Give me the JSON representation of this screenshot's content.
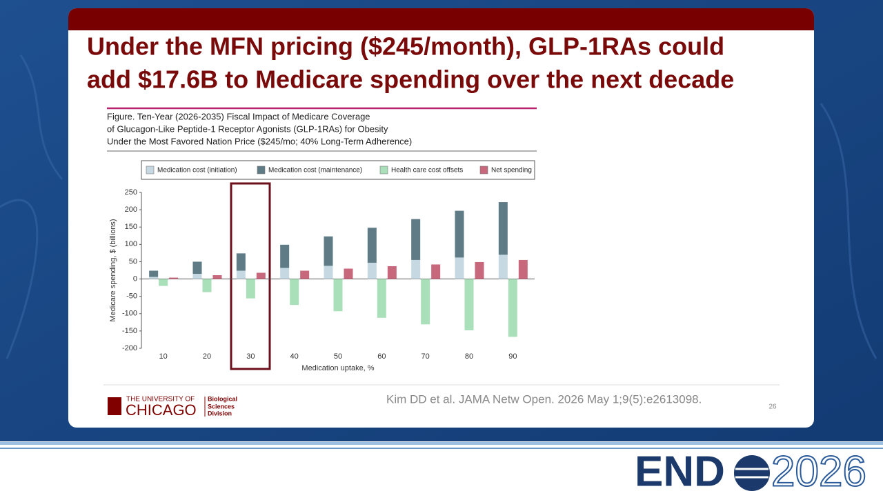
{
  "slide_title": [
    "Under the MFN pricing ($245/month), GLP-1RAs could",
    "add $17.6B to Medicare spending over the next decade"
  ],
  "chart_data": {
    "type": "bar",
    "caption": [
      "Figure. Ten-Year (2026-2035) Fiscal Impact of Medicare Coverage",
      "of Glucagon-Like Peptide-1 Receptor Agonists (GLP-1RAs) for Obesity",
      "Under the Most Favored Nation Price ($245/mo; 40% Long-Term Adherence)"
    ],
    "x_label": "Medication uptake, %",
    "y_label": "Medicare spending, $ (billions)",
    "categories": [
      "10",
      "20",
      "30",
      "40",
      "50",
      "60",
      "70",
      "80",
      "90"
    ],
    "series": [
      {
        "name": "Medication cost (initiation)",
        "color": "#c6d9e2",
        "stacked": true,
        "values": [
          6,
          15,
          24,
          32,
          38,
          47,
          55,
          62,
          70
        ]
      },
      {
        "name": "Medication cost (maintenance)",
        "color": "#5e7b86",
        "stacked": true,
        "values": [
          18,
          35,
          50,
          67,
          85,
          101,
          118,
          135,
          152
        ]
      },
      {
        "name": "Health care cost offsets",
        "color": "#a9dfb9",
        "values": [
          -20,
          -38,
          -56,
          -75,
          -93,
          -112,
          -131,
          -148,
          -167
        ]
      },
      {
        "name": "Net spending",
        "color": "#c8687c",
        "values": [
          4,
          11,
          18,
          24,
          30,
          37,
          42,
          49,
          55
        ]
      }
    ],
    "ylim": [
      -200,
      250
    ],
    "yticks": [
      -200,
      -150,
      -100,
      -50,
      0,
      50,
      100,
      150,
      200,
      250
    ]
  },
  "footer": {
    "university_line1": "THE UNIVERSITY OF",
    "university_line2": "CHICAGO",
    "division": [
      "Biological",
      "Sciences",
      "Division"
    ],
    "citation": "Kim DD et al. JAMA Netw Open. 2026 May 1;9(5):e2613098.",
    "page_number": "26"
  },
  "logo": {
    "left": "END",
    "right": "2026"
  }
}
